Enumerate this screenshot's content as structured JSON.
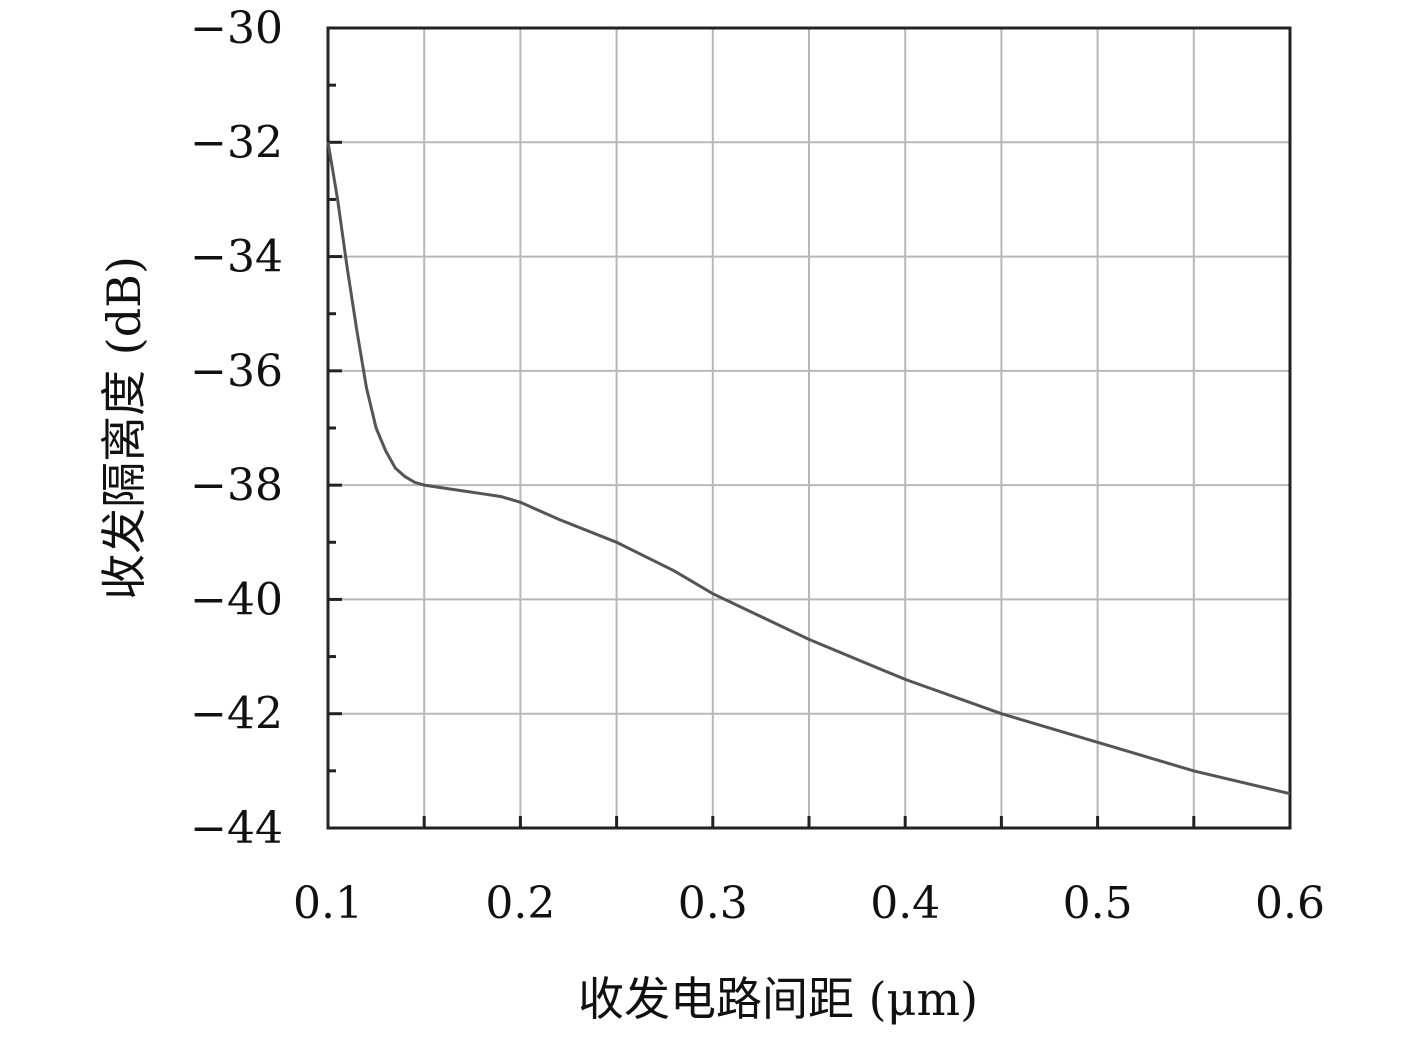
{
  "chart_data": {
    "type": "line",
    "title": "",
    "xlabel": "收发电路间距 (μm)",
    "ylabel": "收发隔离度 (dB)",
    "xlim": [
      0.1,
      0.6
    ],
    "ylim": [
      -44,
      -30
    ],
    "xticks": [
      0.1,
      0.2,
      0.3,
      0.4,
      0.5,
      0.6
    ],
    "xtick_labels": [
      "0.1",
      "0.2",
      "0.3",
      "0.4",
      "0.5",
      "0.6"
    ],
    "yticks": [
      -30,
      -32,
      -34,
      -36,
      -38,
      -40,
      -42,
      -44
    ],
    "ytick_labels": [
      "−30",
      "−32",
      "−34",
      "−36",
      "−38",
      "−40",
      "−42",
      "−44"
    ],
    "grid": true,
    "series": [
      {
        "color": "#555555",
        "x": [
          0.1,
          0.105,
          0.11,
          0.115,
          0.12,
          0.125,
          0.13,
          0.135,
          0.14,
          0.145,
          0.15,
          0.16,
          0.17,
          0.18,
          0.19,
          0.2,
          0.22,
          0.25,
          0.28,
          0.3,
          0.35,
          0.4,
          0.45,
          0.5,
          0.55,
          0.6
        ],
        "y": [
          -32.0,
          -33.0,
          -34.2,
          -35.3,
          -36.3,
          -37.0,
          -37.4,
          -37.7,
          -37.85,
          -37.95,
          -38.0,
          -38.05,
          -38.1,
          -38.15,
          -38.2,
          -38.3,
          -38.6,
          -39.0,
          -39.5,
          -39.9,
          -40.7,
          -41.4,
          -42.0,
          -42.5,
          -43.0,
          -43.4
        ]
      }
    ]
  }
}
